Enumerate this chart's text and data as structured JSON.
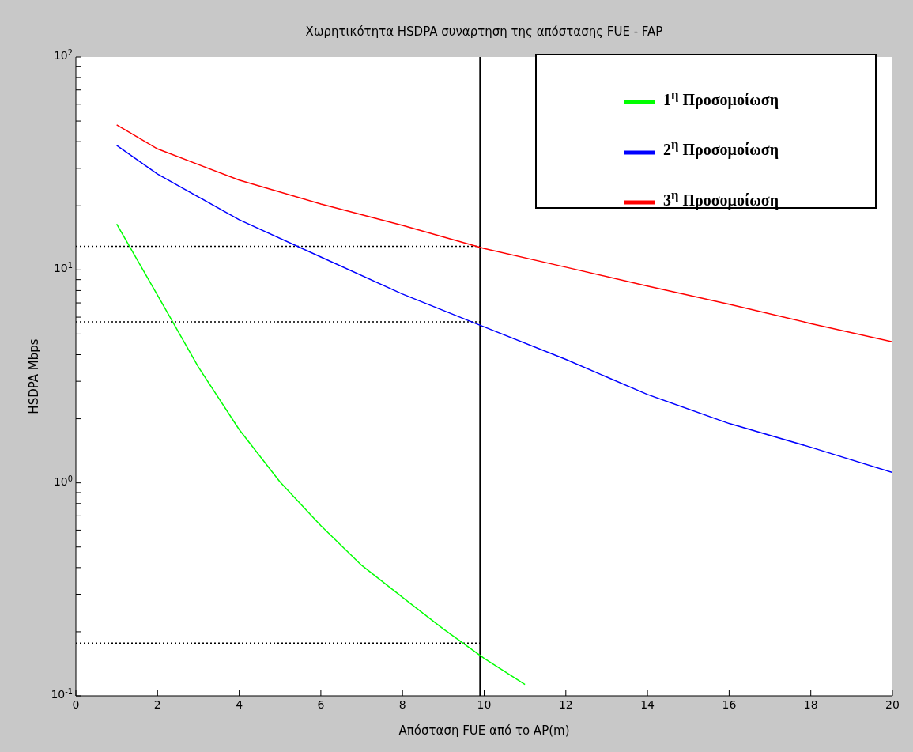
{
  "chart_data": {
    "type": "line",
    "title": "Χωρητικότητα HSDPA συναρτηση της απόστασης FUE - FAP",
    "xlabel": "Απόσταση FUE από το AP(m)",
    "ylabel": "HSDPA Mbps",
    "log": "y",
    "xlim": [
      0,
      20
    ],
    "xticks": [
      0,
      2,
      4,
      6,
      8,
      10,
      12,
      14,
      16,
      18,
      20
    ],
    "ylim": [
      0.1,
      100
    ],
    "yticks": [
      {
        "value": 0.1,
        "label": "10$^{-1}$"
      },
      {
        "value": 0.2,
        "label": null
      },
      {
        "value": 0.3,
        "label": null
      },
      {
        "value": 0.4,
        "label": null
      },
      {
        "value": 0.5,
        "label": null
      },
      {
        "value": 0.6,
        "label": null
      },
      {
        "value": 0.7,
        "label": null
      },
      {
        "value": 0.8,
        "label": null
      },
      {
        "value": 0.9,
        "label": null
      },
      {
        "value": 1,
        "label": "10$^{0}$"
      },
      {
        "value": 2,
        "label": null
      },
      {
        "value": 3,
        "label": null
      },
      {
        "value": 4,
        "label": null
      },
      {
        "value": 5,
        "label": null
      },
      {
        "value": 6,
        "label": null
      },
      {
        "value": 7,
        "label": null
      },
      {
        "value": 8,
        "label": null
      },
      {
        "value": 9,
        "label": null
      },
      {
        "value": 10,
        "label": "10$^{1}$"
      },
      {
        "value": 20,
        "label": null
      },
      {
        "value": 30,
        "label": null
      },
      {
        "value": 40,
        "label": null
      },
      {
        "value": 50,
        "label": null
      },
      {
        "value": 60,
        "label": null
      },
      {
        "value": 70,
        "label": null
      },
      {
        "value": 80,
        "label": null
      },
      {
        "value": 90,
        "label": null
      },
      {
        "value": 100,
        "label": "10$^{2}$"
      }
    ],
    "grid": false,
    "legend": "top right",
    "marker": "none",
    "line_style": "solid",
    "series": [
      {
        "name": "1$^{η}$ Προσομοίωση",
        "color": "#00ff00",
        "x": [
          1,
          2,
          3,
          4,
          5,
          6,
          7,
          8,
          9,
          10,
          11
        ],
        "values": [
          16.4,
          7.6,
          3.5,
          1.78,
          1.01,
          0.63,
          0.41,
          0.29,
          0.206,
          0.15,
          0.113
        ]
      },
      {
        "name": "2$^{η}$ Προσομοίωση",
        "color": "#0000ff",
        "x": [
          1,
          2,
          4,
          6,
          8,
          10,
          12,
          14,
          16,
          18,
          20
        ],
        "values": [
          38.4,
          28.2,
          17.2,
          11.5,
          7.7,
          5.4,
          3.8,
          2.6,
          1.9,
          1.47,
          1.12
        ]
      },
      {
        "name": "3$^{η}$ Προσομοίωση",
        "color": "#ff0000",
        "x": [
          1,
          2,
          4,
          6,
          8,
          10,
          12,
          14,
          16,
          18,
          20
        ],
        "values": [
          48,
          37,
          26.4,
          20.4,
          16.2,
          12.6,
          10.3,
          8.4,
          6.9,
          5.6,
          4.6
        ]
      }
    ],
    "ref_lines": [
      {
        "axis": "x",
        "value": 9.9,
        "color": "#000000",
        "line_style": "solid"
      },
      {
        "axis": "y",
        "value": 12.9,
        "color": "#000000",
        "line_style": "dotted"
      },
      {
        "axis": "y",
        "value": 5.7,
        "color": "#000000",
        "line_style": "dotted"
      },
      {
        "axis": "y",
        "value": 0.177,
        "color": "#000000",
        "line_style": "dotted"
      }
    ]
  }
}
